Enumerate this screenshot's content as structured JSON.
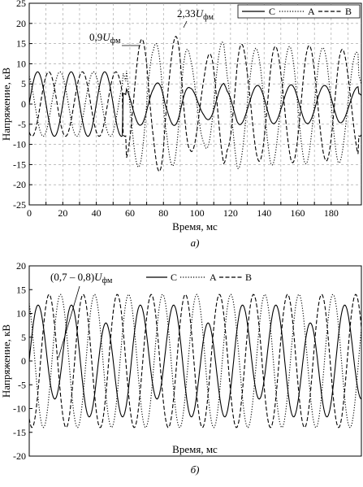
{
  "chart_data": [
    {
      "type": "line",
      "xlabel": "Время, мс",
      "ylabel": "Напряжение, кВ",
      "xlim": [
        0,
        198
      ],
      "ylim": [
        -25,
        25
      ],
      "xticks": [
        0,
        10,
        20,
        30,
        40,
        50,
        60,
        70,
        80,
        90,
        100,
        110,
        120,
        130,
        140,
        150,
        160,
        170,
        180,
        190
      ],
      "yticks": [
        -25,
        -20,
        -15,
        -10,
        -5,
        0,
        5,
        10,
        15,
        20,
        25
      ],
      "grid": "dashed",
      "legend_position": "top-right",
      "caption": "а)",
      "annotations": [
        {
          "text_prefix": "0,9",
          "text_var": "U",
          "text_sub": "фм",
          "x": 72,
          "y": 16.8
        },
        {
          "text_prefix": "2,33",
          "text_var": "U",
          "text_sub": "фм",
          "x": 92,
          "y": 19
        }
      ],
      "series": [
        {
          "name": "C",
          "style": "solid"
        },
        {
          "name": "A",
          "style": "dotted"
        },
        {
          "name": "B",
          "style": "dashed"
        }
      ],
      "waveform": {
        "t_fault": 56,
        "pre_amplitude": 8,
        "post_peaks": [
          {
            "t": 58,
            "y": -14
          },
          {
            "t": 70,
            "y": 16.8
          },
          {
            "t": 74,
            "y": 14
          },
          {
            "t": 80,
            "y": -19
          },
          {
            "t": 82,
            "y": -13
          },
          {
            "t": 90,
            "y": 18.8
          },
          {
            "t": 96,
            "y": -12
          },
          {
            "t": 104,
            "y": 10
          },
          {
            "t": 110,
            "y": 14.5
          },
          {
            "t": 116,
            "y": -15.5
          },
          {
            "t": 118,
            "y": -12
          },
          {
            "t": 124,
            "y": 16.5
          },
          {
            "t": 130,
            "y": 13
          },
          {
            "t": 136,
            "y": -14
          },
          {
            "t": 144,
            "y": 15.5
          },
          {
            "t": 150,
            "y": 13
          },
          {
            "t": 156,
            "y": -14.5
          },
          {
            "t": 164,
            "y": 15
          },
          {
            "t": 170,
            "y": 14
          },
          {
            "t": 176,
            "y": -14
          },
          {
            "t": 184,
            "y": 15
          },
          {
            "t": 190,
            "y": 12
          },
          {
            "t": 196,
            "y": -13
          }
        ]
      }
    },
    {
      "type": "line",
      "xlabel": "Время, мс",
      "ylabel": "Напряжение, кВ",
      "ylim": [
        -20,
        20
      ],
      "yticks": [
        -20,
        -15,
        -10,
        -5,
        0,
        5,
        10,
        15,
        20
      ],
      "grid": "none",
      "legend_position": "top-right",
      "caption": "б)",
      "annotations": [
        {
          "text_prefix": "(0,7 – 0,8)",
          "text_var": "U",
          "text_sub": "фм"
        }
      ],
      "series": [
        {
          "name": "C",
          "style": "solid"
        },
        {
          "name": "A",
          "style": "dotted"
        },
        {
          "name": "B",
          "style": "dashed"
        }
      ],
      "waveform": {
        "amplitude": 14,
        "period_ms": 20,
        "note_peaks": [
          14,
          13.5,
          15.5,
          -13.5,
          -14
        ]
      }
    }
  ]
}
